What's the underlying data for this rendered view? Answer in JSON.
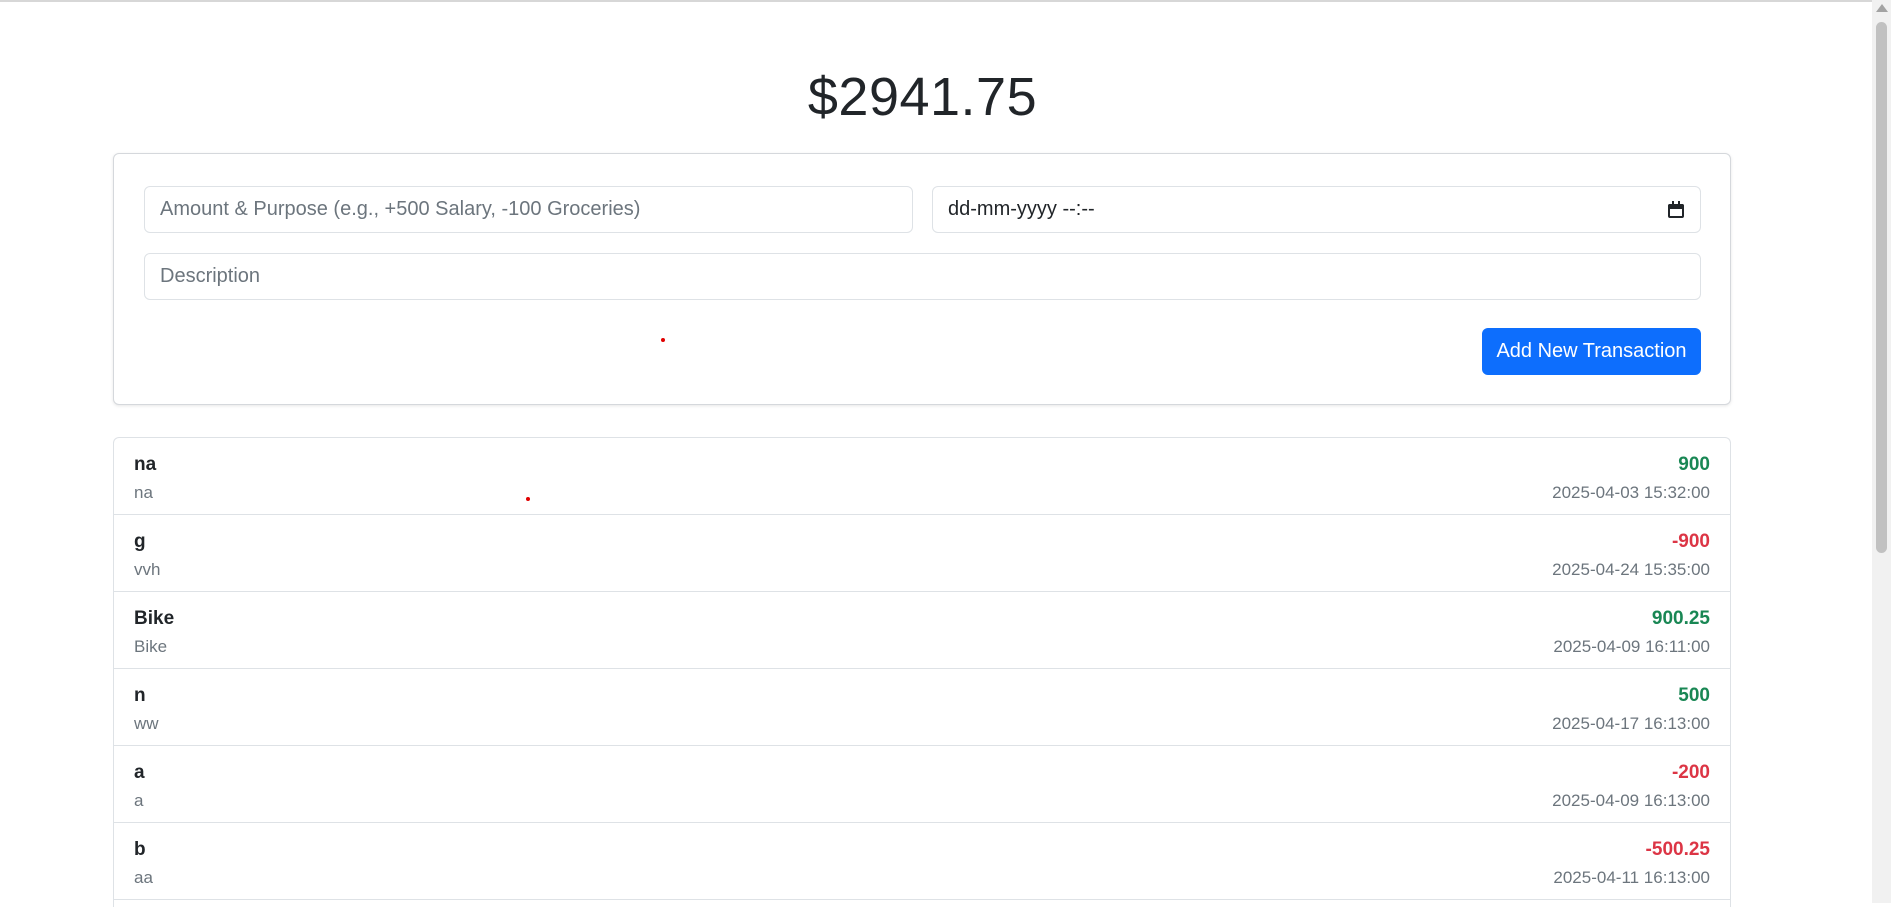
{
  "balance": "$2941.75",
  "form": {
    "amount_placeholder": "Amount & Purpose (e.g., +500 Salary, -100 Groceries)",
    "date_placeholder": "dd-mm-yyyy --:--",
    "description_placeholder": "Description",
    "add_button_label": "Add New Transaction"
  },
  "icons": {
    "calendar": "calendar-icon"
  },
  "colors": {
    "primary": "#0d6efd",
    "positive": "#198754",
    "negative": "#dc3545"
  },
  "transactions": [
    {
      "title": "na",
      "description": "na",
      "amount": "900",
      "date": "2025-04-03 15:32:00",
      "type": "positive"
    },
    {
      "title": "g",
      "description": "vvh",
      "amount": "-900",
      "date": "2025-04-24 15:35:00",
      "type": "negative"
    },
    {
      "title": "Bike",
      "description": "Bike",
      "amount": "900.25",
      "date": "2025-04-09 16:11:00",
      "type": "positive"
    },
    {
      "title": "n",
      "description": "ww",
      "amount": "500",
      "date": "2025-04-17 16:13:00",
      "type": "positive"
    },
    {
      "title": "a",
      "description": "a",
      "amount": "-200",
      "date": "2025-04-09 16:13:00",
      "type": "negative"
    },
    {
      "title": "b",
      "description": "aa",
      "amount": "-500.25",
      "date": "2025-04-11 16:13:00",
      "type": "negative"
    }
  ]
}
